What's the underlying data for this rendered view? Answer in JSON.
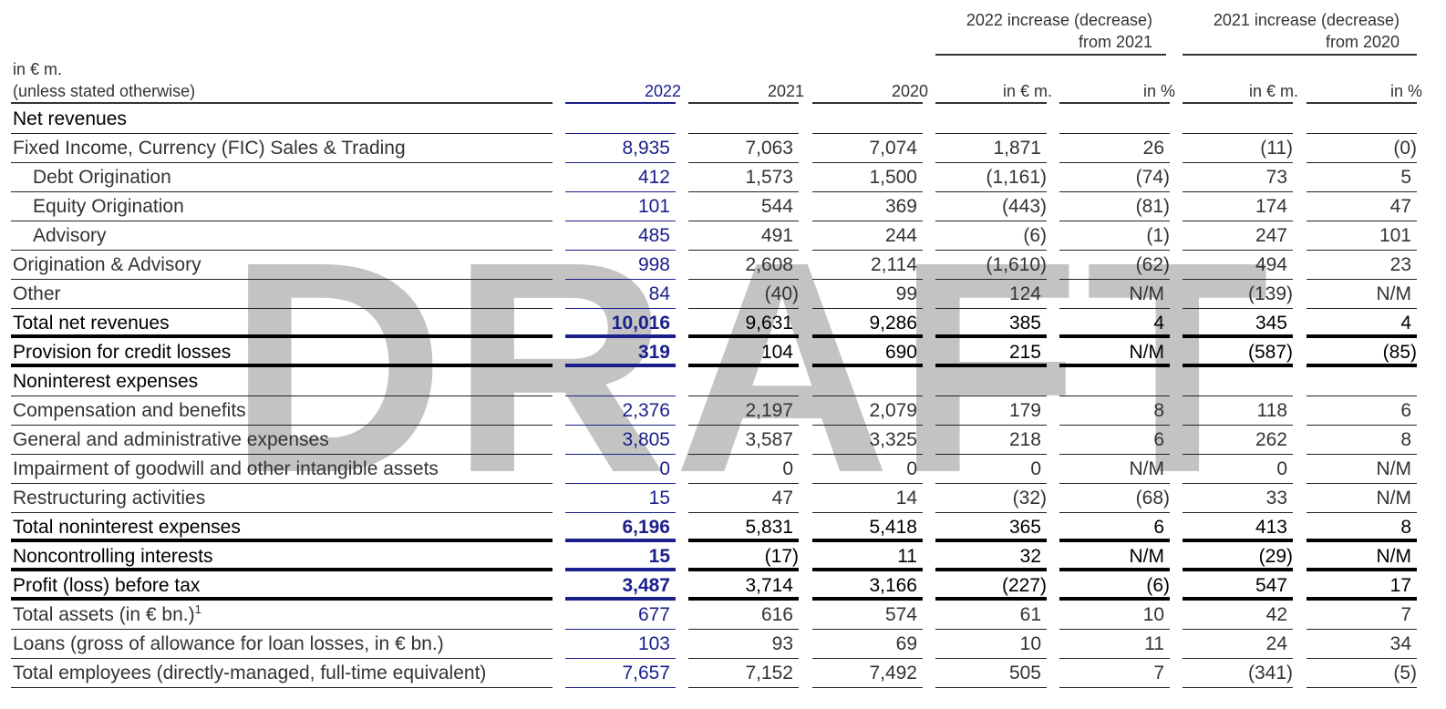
{
  "watermark": "DRAFT",
  "header": {
    "unit_line1": "in € m.",
    "unit_line2": "(unless stated otherwise)",
    "group1_line1": "2022 increase (decrease)",
    "group1_line2": "from 2021",
    "group2_line1": "2021 increase (decrease)",
    "group2_line2": "from 2020",
    "columns": [
      "2022",
      "2021",
      "2020",
      "in € m.",
      "in %",
      "in € m.",
      "in %"
    ]
  },
  "rows": [
    {
      "label": "Net revenues",
      "values": [
        "",
        "",
        "",
        "",
        "",
        "",
        ""
      ],
      "style": "section",
      "indent": false
    },
    {
      "label": "Fixed Income, Currency (FIC) Sales & Trading",
      "values": [
        "8,935",
        "7,063",
        "7,074",
        "1,871",
        "26",
        "(11)",
        "(0)"
      ],
      "style": "normal",
      "indent": false
    },
    {
      "label": "Debt Origination",
      "values": [
        "412",
        "1,573",
        "1,500",
        "(1,161)",
        "(74)",
        "73",
        "5"
      ],
      "style": "normal",
      "indent": true
    },
    {
      "label": "Equity Origination",
      "values": [
        "101",
        "544",
        "369",
        "(443)",
        "(81)",
        "174",
        "47"
      ],
      "style": "normal",
      "indent": true
    },
    {
      "label": "Advisory",
      "values": [
        "485",
        "491",
        "244",
        "(6)",
        "(1)",
        "247",
        "101"
      ],
      "style": "normal",
      "indent": true
    },
    {
      "label": "Origination & Advisory",
      "values": [
        "998",
        "2,608",
        "2,114",
        "(1,610)",
        "(62)",
        "494",
        "23"
      ],
      "style": "normal",
      "indent": false
    },
    {
      "label": "Other",
      "values": [
        "84",
        "(40)",
        "99",
        "124",
        "N/M",
        "(139)",
        "N/M"
      ],
      "style": "normal",
      "indent": false
    },
    {
      "label": "Total net revenues",
      "values": [
        "10,016",
        "9,631",
        "9,286",
        "385",
        "4",
        "345",
        "4"
      ],
      "style": "total",
      "indent": false
    },
    {
      "label": "Provision for credit losses",
      "values": [
        "319",
        "104",
        "690",
        "215",
        "N/M",
        "(587)",
        "(85)"
      ],
      "style": "total",
      "indent": false
    },
    {
      "label": "Noninterest expenses",
      "values": [
        "",
        "",
        "",
        "",
        "",
        "",
        ""
      ],
      "style": "section",
      "indent": false
    },
    {
      "label": "Compensation and benefits",
      "values": [
        "2,376",
        "2,197",
        "2,079",
        "179",
        "8",
        "118",
        "6"
      ],
      "style": "normal",
      "indent": false
    },
    {
      "label": "General and administrative expenses",
      "values": [
        "3,805",
        "3,587",
        "3,325",
        "218",
        "6",
        "262",
        "8"
      ],
      "style": "normal",
      "indent": false
    },
    {
      "label": "Impairment of goodwill and other intangible assets",
      "values": [
        "0",
        "0",
        "0",
        "0",
        "N/M",
        "0",
        "N/M"
      ],
      "style": "normal",
      "indent": false
    },
    {
      "label": "Restructuring activities",
      "values": [
        "15",
        "47",
        "14",
        "(32)",
        "(68)",
        "33",
        "N/M"
      ],
      "style": "normal",
      "indent": false
    },
    {
      "label": "Total noninterest expenses",
      "values": [
        "6,196",
        "5,831",
        "5,418",
        "365",
        "6",
        "413",
        "8"
      ],
      "style": "total",
      "indent": false
    },
    {
      "label": "Noncontrolling interests",
      "values": [
        "15",
        "(17)",
        "11",
        "32",
        "N/M",
        "(29)",
        "N/M"
      ],
      "style": "total",
      "indent": false
    },
    {
      "label": "Profit (loss) before tax",
      "values": [
        "3,487",
        "3,714",
        "3,166",
        "(227)",
        "(6)",
        "547",
        "17"
      ],
      "style": "total",
      "indent": false
    },
    {
      "label": "Total assets (in € bn.)",
      "sup": "1",
      "values": [
        "677",
        "616",
        "574",
        "61",
        "10",
        "42",
        "7"
      ],
      "style": "normal",
      "indent": false
    },
    {
      "label": "Loans (gross of allowance for loan losses, in € bn.)",
      "values": [
        "103",
        "93",
        "69",
        "10",
        "11",
        "24",
        "34"
      ],
      "style": "normal",
      "indent": false
    },
    {
      "label": "Total employees (directly-managed, full-time equivalent)",
      "values": [
        "7,657",
        "7,152",
        "7,492",
        "505",
        "7",
        "(341)",
        "(5)"
      ],
      "style": "normal",
      "indent": false
    }
  ]
}
